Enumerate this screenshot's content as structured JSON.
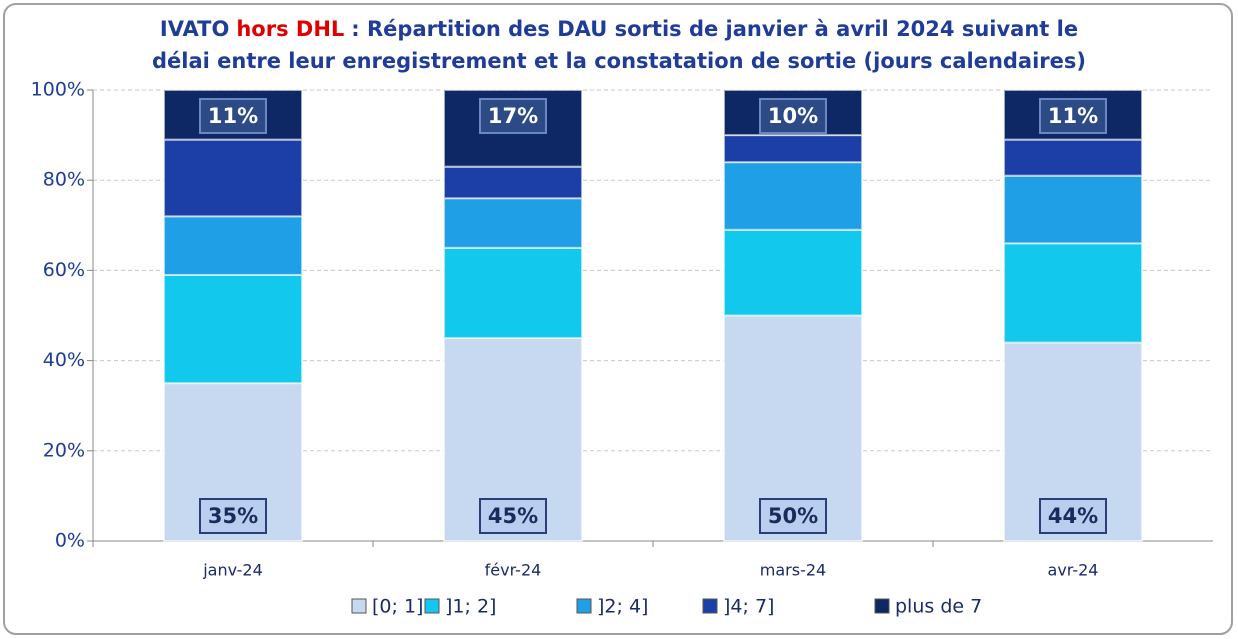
{
  "chart_data": {
    "type": "stacked_bar",
    "title": [
      [
        "IVATO",
        "hors DHL",
        ": Répartition des DAU sortis de janvier à avril 2024 suivant le"
      ],
      [
        "délai entre leur enregistrement et la constatation de sortie (jours calendaires)"
      ]
    ],
    "categories": [
      "janv-24",
      "févr-24",
      "mars-24",
      "avr-24"
    ],
    "series": [
      {
        "name": "[0; 1]",
        "color": "#c6d9f1",
        "values": [
          35,
          45,
          50,
          44
        ],
        "value_labels": [
          "35%",
          "45%",
          "50%",
          "44%"
        ]
      },
      {
        "name": "]1; 2]",
        "color": "#12c8ec",
        "values": [
          24,
          20,
          19,
          22
        ]
      },
      {
        "name": "]2; 4]",
        "color": "#1f9fe6",
        "values": [
          13,
          11,
          15,
          15
        ]
      },
      {
        "name": "]4; 7]",
        "color": "#1b3fa6",
        "values": [
          17,
          7,
          6,
          8
        ]
      },
      {
        "name": "plus de 7",
        "color": "#0e2866",
        "values": [
          11,
          17,
          10,
          11
        ],
        "value_labels": [
          "11%",
          "17%",
          "10%",
          "11%"
        ]
      }
    ],
    "ylim": [
      0,
      100
    ],
    "yticks": [
      {
        "value": 0,
        "label": "0%"
      },
      {
        "value": 20,
        "label": "20%"
      },
      {
        "value": 40,
        "label": "40%"
      },
      {
        "value": 60,
        "label": "60%"
      },
      {
        "value": 80,
        "label": "80%"
      },
      {
        "value": 100,
        "label": "100%"
      }
    ],
    "grid": true,
    "legend": "bottom"
  }
}
